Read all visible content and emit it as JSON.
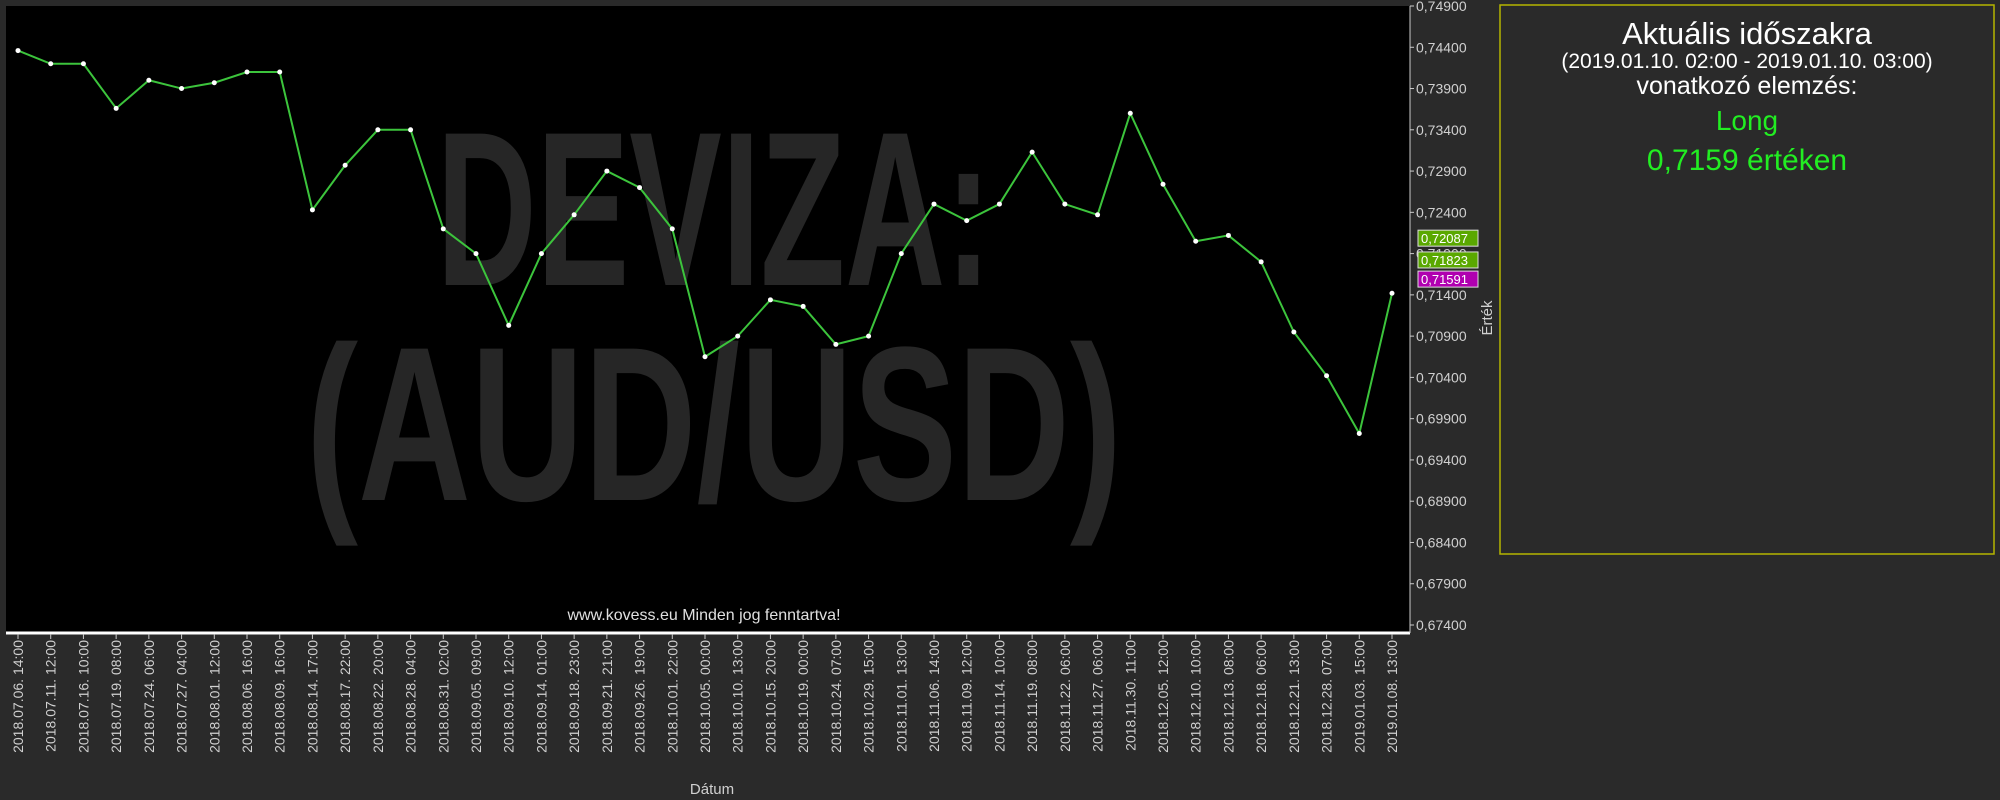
{
  "chart_data": {
    "type": "line",
    "watermark": [
      "DEVIZA:",
      "(AUD/USD)"
    ],
    "copyright": "www.kovess.eu Minden jog fenntartva!",
    "x_label": "Dátum",
    "y_label": "Érték",
    "categories": [
      "2018.07.06. 14:00",
      "2018.07.11. 12:00",
      "2018.07.16. 10:00",
      "2018.07.19. 08:00",
      "2018.07.24. 06:00",
      "2018.07.27. 04:00",
      "2018.08.01. 12:00",
      "2018.08.06. 16:00",
      "2018.08.09. 16:00",
      "2018.08.14. 17:00",
      "2018.08.17. 22:00",
      "2018.08.22. 20:00",
      "2018.08.28. 04:00",
      "2018.08.31. 02:00",
      "2018.09.05. 09:00",
      "2018.09.10. 12:00",
      "2018.09.14. 01:00",
      "2018.09.18. 23:00",
      "2018.09.21. 21:00",
      "2018.09.26. 19:00",
      "2018.10.01. 22:00",
      "2018.10.05. 00:00",
      "2018.10.10. 13:00",
      "2018.10.15. 20:00",
      "2018.10.19. 00:00",
      "2018.10.24. 07:00",
      "2018.10.29. 15:00",
      "2018.11.01. 13:00",
      "2018.11.06. 14:00",
      "2018.11.09. 12:00",
      "2018.11.14. 10:00",
      "2018.11.19. 08:00",
      "2018.11.22. 06:00",
      "2018.11.27. 06:00",
      "2018.11.30. 11:00",
      "2018.12.05. 12:00",
      "2018.12.10. 10:00",
      "2018.12.13. 08:00",
      "2018.12.18. 06:00",
      "2018.12.21. 13:00",
      "2018.12.28. 07:00",
      "2019.01.03. 15:00",
      "2019.01.08. 13:00"
    ],
    "values": [
      0.7436,
      0.742,
      0.742,
      0.7366,
      0.74,
      0.739,
      0.7397,
      0.741,
      0.741,
      0.7243,
      0.7297,
      0.734,
      0.734,
      0.722,
      0.719,
      0.7103,
      0.719,
      0.7237,
      0.729,
      0.727,
      0.722,
      0.7065,
      0.709,
      0.7134,
      0.7126,
      0.708,
      0.709,
      0.719,
      0.725,
      0.723,
      0.725,
      0.7313,
      0.725,
      0.7237,
      0.736,
      0.7274,
      0.7205,
      0.7212,
      0.718,
      0.7095,
      0.7042,
      0.6972,
      0.7142
    ],
    "color": "#3cc43c",
    "ylim": [
      0.674,
      0.749
    ],
    "yticks": [
      {
        "value": 0.749,
        "label": "0,74900"
      },
      {
        "value": 0.744,
        "label": "0,74400"
      },
      {
        "value": 0.739,
        "label": "0,73900"
      },
      {
        "value": 0.734,
        "label": "0,73400"
      },
      {
        "value": 0.729,
        "label": "0,72900"
      },
      {
        "value": 0.724,
        "label": "0,72400"
      },
      {
        "value": 0.719,
        "label": "0,71900"
      },
      {
        "value": 0.714,
        "label": "0,71400"
      },
      {
        "value": 0.709,
        "label": "0,70900"
      },
      {
        "value": 0.704,
        "label": "0,70400"
      },
      {
        "value": 0.699,
        "label": "0,69900"
      },
      {
        "value": 0.694,
        "label": "0,69400"
      },
      {
        "value": 0.689,
        "label": "0,68900"
      },
      {
        "value": 0.684,
        "label": "0,68400"
      },
      {
        "value": 0.679,
        "label": "0,67900"
      },
      {
        "value": 0.674,
        "label": "0,67400"
      }
    ],
    "price_markers": [
      {
        "value": 0.72087,
        "label": "0,72087",
        "color": "#5aa800"
      },
      {
        "value": 0.71823,
        "label": "0,71823",
        "color": "#5aa800"
      },
      {
        "value": 0.71591,
        "label": "0,71591",
        "color": "#b000b0"
      }
    ]
  },
  "panel": {
    "title": "Aktuális időszakra",
    "period": "(2019.01.10. 02:00 - 2019.01.10. 03:00)",
    "subtitle": "vonatkozó elemzés:",
    "signal": "Long",
    "price": "0,7159  értéken"
  }
}
